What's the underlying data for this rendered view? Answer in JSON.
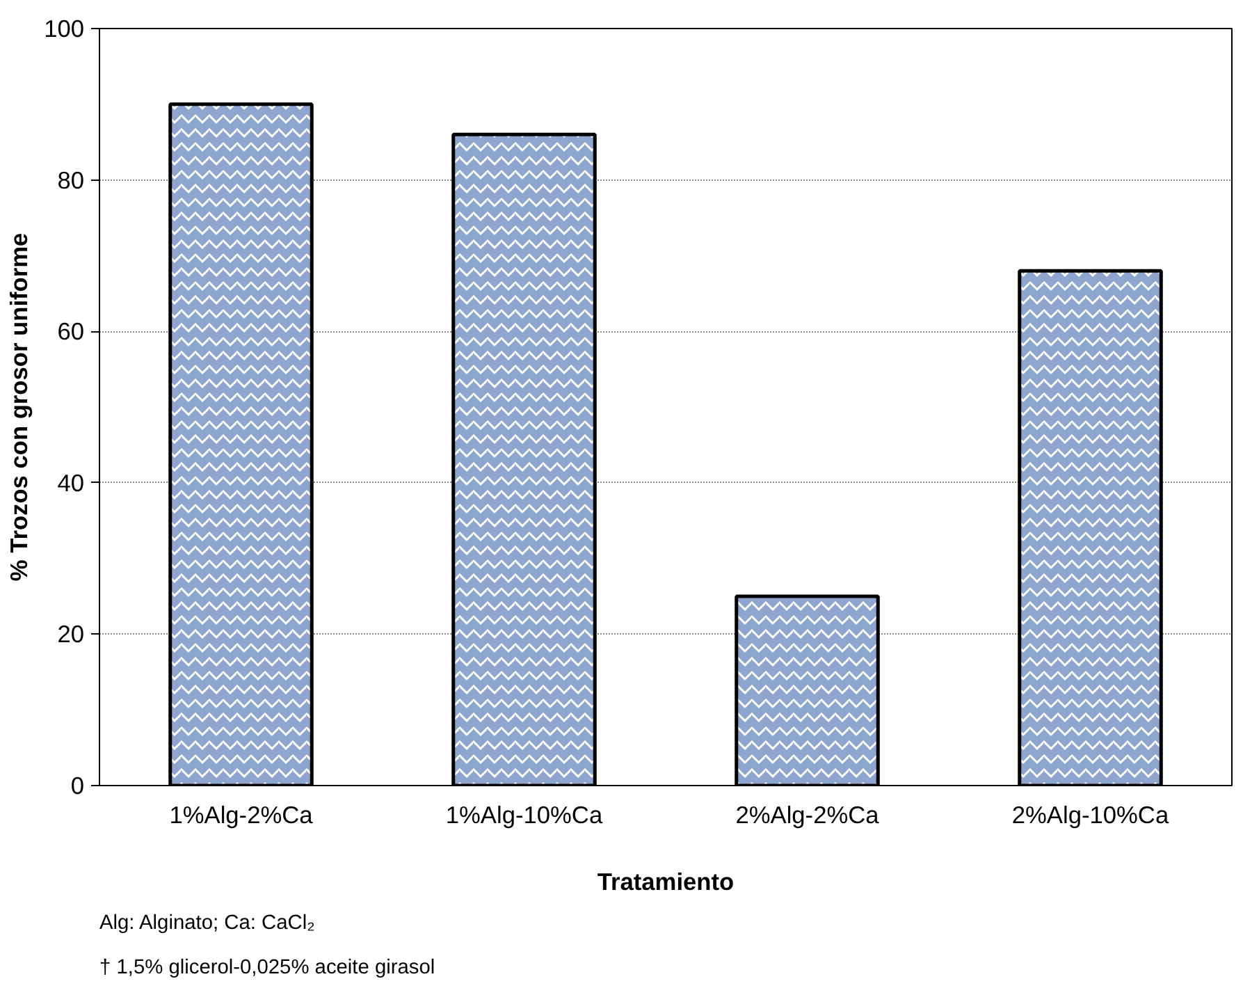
{
  "chart_data": {
    "type": "bar",
    "xlabel": "Tratamiento",
    "ylabel": "% Trozos con grosor uniforme",
    "categories": [
      "1%Alg-2%Ca",
      "1%Alg-10%Ca",
      "2%Alg-2%Ca",
      "2%Alg-10%Ca"
    ],
    "values": [
      90,
      86,
      25,
      68
    ],
    "color": "#8ea6cf",
    "ylim": [
      0,
      100
    ],
    "yticks": [
      0,
      20,
      40,
      60,
      80,
      100
    ],
    "grid": "y",
    "annotations": [
      "Alg: Alginato; Ca: CaCl₂",
      "† 1,5% glicerol-0,025% aceite girasol"
    ]
  }
}
